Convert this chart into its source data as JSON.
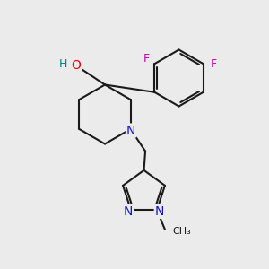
{
  "background_color": "#ebebeb",
  "bond_color": "#1a1a1a",
  "atom_colors": {
    "N": "#1414cc",
    "O": "#ee0000",
    "F": "#cc00aa",
    "H": "#008080"
  },
  "figsize": [
    3.0,
    3.0
  ],
  "dpi": 100,
  "xlim": [
    0,
    10
  ],
  "ylim": [
    0,
    10
  ],
  "lw": 1.5
}
